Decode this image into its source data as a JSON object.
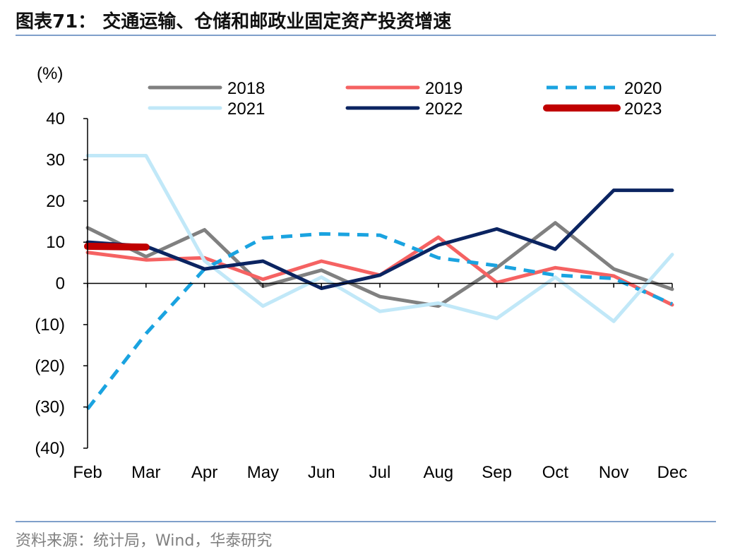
{
  "header": {
    "title": "图表71： 交通运输、仓储和邮政业固定资产投资增速"
  },
  "footer": {
    "source": "资料来源：统计局，Wind，华泰研究"
  },
  "chart_data": {
    "type": "line",
    "title": "",
    "xlabel": "",
    "ylabel": "(%)",
    "categories": [
      "Feb",
      "Mar",
      "Apr",
      "May",
      "Jun",
      "Jul",
      "Aug",
      "Sep",
      "Oct",
      "Nov",
      "Dec"
    ],
    "ylim": [
      -40,
      40
    ],
    "yticks": [
      40,
      30,
      20,
      10,
      0,
      -10,
      -20,
      -30,
      -40
    ],
    "ytick_labels": [
      "40",
      "30",
      "20",
      "10",
      "0",
      "(10)",
      "(20)",
      "(30)",
      "(40)"
    ],
    "grid": false,
    "legend": "top",
    "series": [
      {
        "name": "2018",
        "color": "#808080",
        "dash": "solid",
        "width": 5,
        "values": [
          13.5,
          6.5,
          13.0,
          -0.7,
          3.2,
          -3.2,
          -5.5,
          3.8,
          14.7,
          3.5,
          -1.4
        ]
      },
      {
        "name": "2019",
        "color": "#f56262",
        "dash": "solid",
        "width": 5,
        "values": [
          7.5,
          5.7,
          6.2,
          1.0,
          5.4,
          2.0,
          11.2,
          0.2,
          3.8,
          1.8,
          -5.2
        ]
      },
      {
        "name": "2020",
        "color": "#1aa3e0",
        "dash": "dashed",
        "width": 5,
        "values": [
          -30.5,
          -12.2,
          3.5,
          11.0,
          12.0,
          11.7,
          6.2,
          4.3,
          2.0,
          1.2,
          -5.0
        ]
      },
      {
        "name": "2021",
        "color": "#c1e8f8",
        "dash": "solid",
        "width": 5,
        "values": [
          31.0,
          31.0,
          5.5,
          -5.5,
          1.5,
          -6.8,
          -4.8,
          -8.5,
          1.5,
          -9.2,
          7.0
        ]
      },
      {
        "name": "2022",
        "color": "#0b2461",
        "dash": "solid",
        "width": 5,
        "values": [
          10.0,
          9.0,
          3.5,
          5.4,
          -1.2,
          2.0,
          9.3,
          13.2,
          8.3,
          22.6,
          22.6
        ]
      },
      {
        "name": "2023",
        "color": "#c00000",
        "dash": "solid",
        "width": 10,
        "values": [
          9.0,
          8.8,
          null,
          null,
          null,
          null,
          null,
          null,
          null,
          null,
          null
        ]
      }
    ]
  }
}
